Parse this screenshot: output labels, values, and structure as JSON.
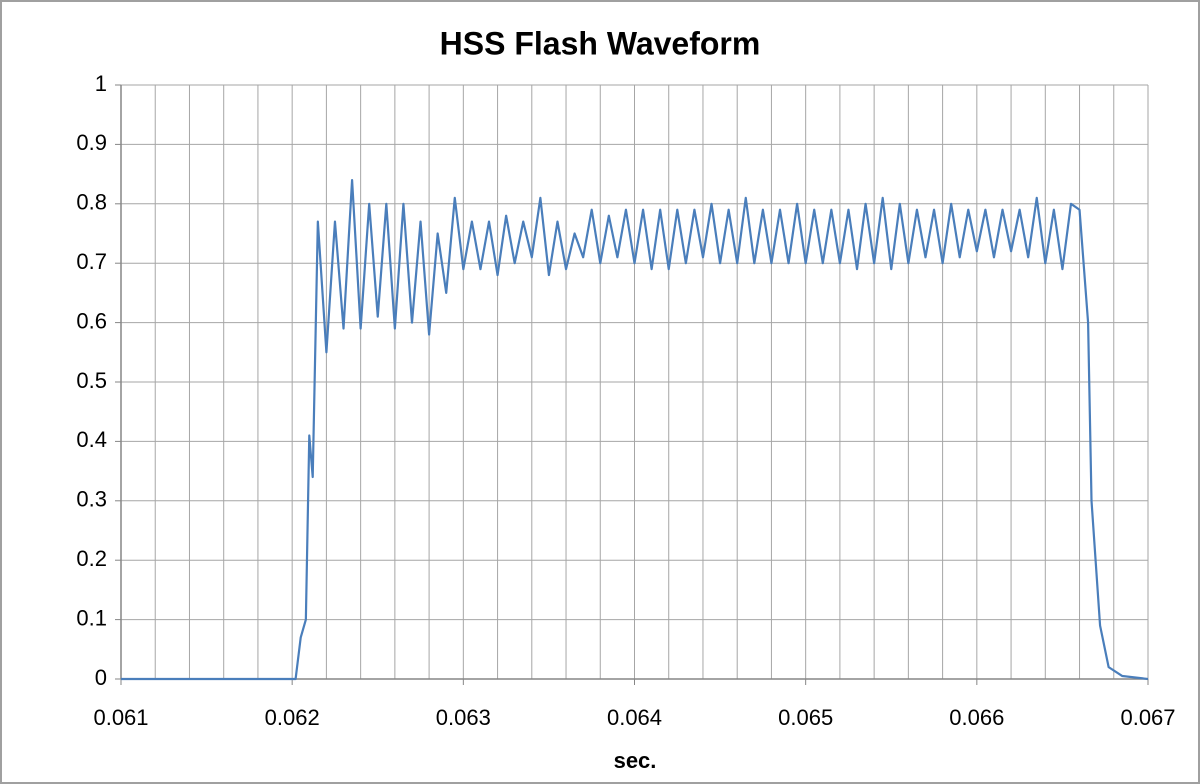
{
  "chart_data": {
    "type": "line",
    "title": "HSS Flash Waveform",
    "xlabel": "sec.",
    "xlim": [
      0.061,
      0.067
    ],
    "ylim": [
      0,
      1
    ],
    "xticks": [
      0.061,
      0.062,
      0.063,
      0.064,
      0.065,
      0.066,
      0.067
    ],
    "xminorticks": [
      0.0612,
      0.0614,
      0.0616,
      0.0618,
      0.0622,
      0.0624,
      0.0626,
      0.0628,
      0.0632,
      0.0634,
      0.0636,
      0.0638,
      0.0642,
      0.0644,
      0.0646,
      0.0648,
      0.0652,
      0.0654,
      0.0656,
      0.0658,
      0.0662,
      0.0664,
      0.0666,
      0.0668
    ],
    "yticks": [
      0,
      0.1,
      0.2,
      0.3,
      0.4,
      0.5,
      0.6,
      0.7,
      0.8,
      0.9,
      1
    ],
    "grid": true,
    "color": "#4a7ebb",
    "x": [
      0.061,
      0.06202,
      0.06205,
      0.06208,
      0.0621,
      0.06212,
      0.06215,
      0.0622,
      0.06225,
      0.0623,
      0.06235,
      0.0624,
      0.06245,
      0.0625,
      0.06255,
      0.0626,
      0.06265,
      0.0627,
      0.06275,
      0.0628,
      0.06285,
      0.0629,
      0.06295,
      0.063,
      0.06305,
      0.0631,
      0.06315,
      0.0632,
      0.06325,
      0.0633,
      0.06335,
      0.0634,
      0.06345,
      0.0635,
      0.06355,
      0.0636,
      0.06365,
      0.0637,
      0.06375,
      0.0638,
      0.06385,
      0.0639,
      0.06395,
      0.064,
      0.06405,
      0.0641,
      0.06415,
      0.0642,
      0.06425,
      0.0643,
      0.06435,
      0.0644,
      0.06445,
      0.0645,
      0.06455,
      0.0646,
      0.06465,
      0.0647,
      0.06475,
      0.0648,
      0.06485,
      0.0649,
      0.06495,
      0.065,
      0.06505,
      0.0651,
      0.06515,
      0.0652,
      0.06525,
      0.0653,
      0.06535,
      0.0654,
      0.06545,
      0.0655,
      0.06555,
      0.0656,
      0.06565,
      0.0657,
      0.06575,
      0.0658,
      0.06585,
      0.0659,
      0.06595,
      0.066,
      0.06605,
      0.0661,
      0.06615,
      0.0662,
      0.06625,
      0.0663,
      0.06635,
      0.0664,
      0.06645,
      0.0665,
      0.06655,
      0.0666,
      0.06665,
      0.06667,
      0.06672,
      0.06677,
      0.06685,
      0.067
    ],
    "values": [
      0,
      0,
      0.07,
      0.1,
      0.41,
      0.34,
      0.77,
      0.55,
      0.77,
      0.59,
      0.84,
      0.59,
      0.8,
      0.61,
      0.8,
      0.59,
      0.8,
      0.6,
      0.77,
      0.58,
      0.75,
      0.65,
      0.81,
      0.69,
      0.77,
      0.69,
      0.77,
      0.68,
      0.78,
      0.7,
      0.77,
      0.71,
      0.81,
      0.68,
      0.77,
      0.69,
      0.75,
      0.71,
      0.79,
      0.7,
      0.78,
      0.71,
      0.79,
      0.7,
      0.79,
      0.69,
      0.79,
      0.69,
      0.79,
      0.7,
      0.79,
      0.71,
      0.8,
      0.7,
      0.79,
      0.7,
      0.81,
      0.7,
      0.79,
      0.7,
      0.79,
      0.7,
      0.8,
      0.7,
      0.79,
      0.7,
      0.79,
      0.7,
      0.79,
      0.69,
      0.8,
      0.7,
      0.81,
      0.69,
      0.8,
      0.7,
      0.79,
      0.71,
      0.79,
      0.7,
      0.8,
      0.71,
      0.79,
      0.72,
      0.79,
      0.71,
      0.79,
      0.72,
      0.79,
      0.71,
      0.81,
      0.7,
      0.79,
      0.69,
      0.8,
      0.79,
      0.6,
      0.3,
      0.09,
      0.02,
      0.005,
      0
    ]
  }
}
